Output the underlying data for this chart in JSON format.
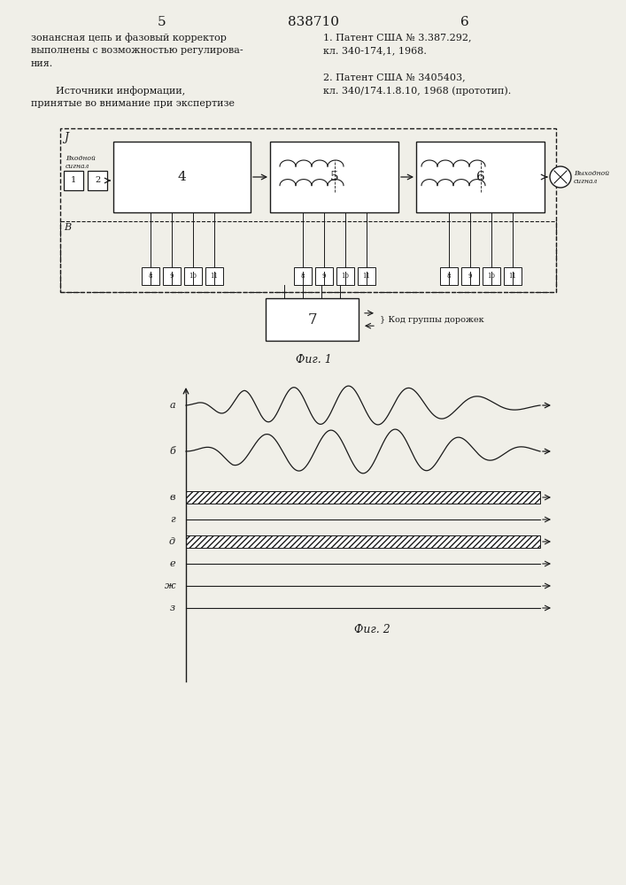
{
  "page_number_left": "5",
  "page_number_center": "838710",
  "page_number_right": "6",
  "text_left_col": [
    "зонансная цепь и фазовый корректор",
    "выполнены с возможностью регулирова-",
    "ния.",
    "",
    "        Источники информации,",
    "принятые во внимание при экспертизе"
  ],
  "text_right_col": [
    "1. Патент США № 3.387.292,",
    "кл. 340-174,1, 1968.",
    "",
    "2. Патент США № 3405403,",
    "кл. 340/174.1.8.10, 1968 (прототип)."
  ],
  "fig1_caption": "Фиг. 1",
  "fig2_caption": "Фиг. 2",
  "fig2_labels": [
    "а",
    "б",
    "в",
    "г",
    "д",
    "е",
    "ж",
    "з"
  ],
  "bg_color": "#f0efe8",
  "line_color": "#1a1a1a"
}
